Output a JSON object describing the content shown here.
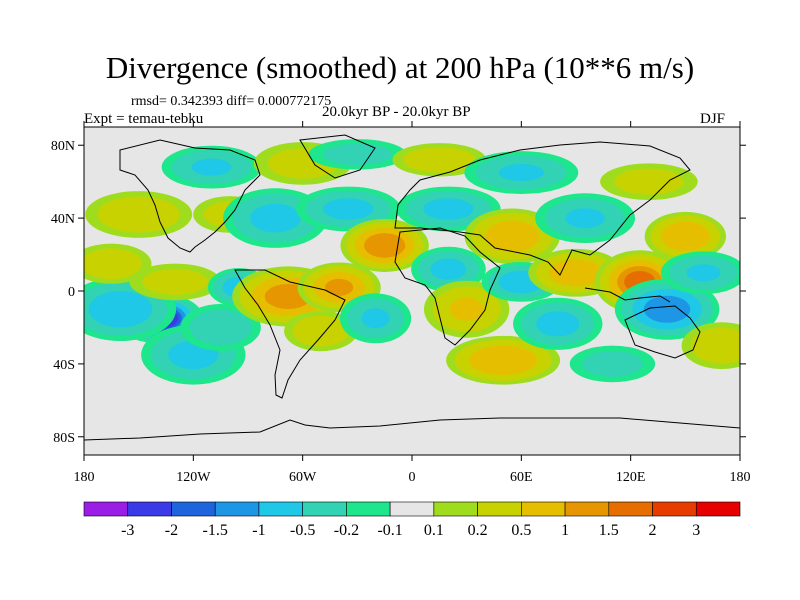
{
  "header": {
    "title": "Divergence (smoothed) at 200 hPa (10**6 m/s)",
    "stats": "rmsd= 0.342393  diff= 0.000772175",
    "experiment": "Expt = temau-tebku",
    "period": "20.0kyr BP - 20.0kyr BP",
    "season": "DJF"
  },
  "chart_data": {
    "type": "heatmap",
    "title": "Divergence (smoothed) at 200 hPa (10**6 m/s)",
    "projection": "cylindrical equidistant",
    "x_axis": {
      "range": [
        -180,
        180
      ],
      "ticks": [
        {
          "value": -180,
          "label": "180"
        },
        {
          "value": -120,
          "label": "120W"
        },
        {
          "value": -60,
          "label": "60W"
        },
        {
          "value": 0,
          "label": "0"
        },
        {
          "value": 60,
          "label": "60E"
        },
        {
          "value": 120,
          "label": "120E"
        },
        {
          "value": 180,
          "label": "180"
        }
      ]
    },
    "y_axis": {
      "range": [
        -90,
        90
      ],
      "ticks": [
        {
          "value": 80,
          "label": "80N"
        },
        {
          "value": 40,
          "label": "40N"
        },
        {
          "value": 0,
          "label": "0"
        },
        {
          "value": -40,
          "label": "40S"
        },
        {
          "value": -80,
          "label": "80S"
        }
      ]
    },
    "colorbar": {
      "colors": [
        "#9b1ee6",
        "#3a3ae6",
        "#1e64dc",
        "#1e96e6",
        "#1ec8e6",
        "#32d2b4",
        "#1ee68c",
        "#e6e6e6",
        "#a0dc1e",
        "#c8d200",
        "#e6be00",
        "#e69600",
        "#e66e00",
        "#e63c00",
        "#e60000"
      ],
      "labels": [
        "-3",
        "-2",
        "-1.5",
        "-1",
        "-0.5",
        "-0.2",
        "-0.1",
        "0.1",
        "0.2",
        "0.5",
        "1",
        "1.5",
        "2",
        "3"
      ]
    },
    "features": [
      {
        "lon": -139,
        "lat": -15,
        "sx": 9,
        "sy": 5,
        "value": -3.0
      },
      {
        "lon": -160,
        "lat": -10,
        "sx": 14,
        "sy": 8,
        "value": -0.8
      },
      {
        "lon": -120,
        "lat": -35,
        "sx": 14,
        "sy": 8,
        "value": -0.6
      },
      {
        "lon": -105,
        "lat": -20,
        "sx": 12,
        "sy": 7,
        "value": -0.4
      },
      {
        "lon": -165,
        "lat": 15,
        "sx": 12,
        "sy": 6,
        "value": 0.4
      },
      {
        "lon": -130,
        "lat": 5,
        "sx": 15,
        "sy": 6,
        "value": 0.3
      },
      {
        "lon": -95,
        "lat": 2,
        "sx": 8,
        "sy": 5,
        "value": -0.7
      },
      {
        "lon": -150,
        "lat": 42,
        "sx": 16,
        "sy": 7,
        "value": 0.4
      },
      {
        "lon": -100,
        "lat": 42,
        "sx": 12,
        "sy": 6,
        "value": 0.3
      },
      {
        "lon": -110,
        "lat": 68,
        "sx": 14,
        "sy": 6,
        "value": -0.5
      },
      {
        "lon": -75,
        "lat": 40,
        "sx": 14,
        "sy": 8,
        "value": -0.6
      },
      {
        "lon": -60,
        "lat": 70,
        "sx": 16,
        "sy": 7,
        "value": 0.3
      },
      {
        "lon": -68,
        "lat": -3,
        "sx": 13,
        "sy": 7,
        "value": 1.2
      },
      {
        "lon": -40,
        "lat": 2,
        "sx": 10,
        "sy": 6,
        "value": 1.0
      },
      {
        "lon": -50,
        "lat": -22,
        "sx": 11,
        "sy": 6,
        "value": 0.4
      },
      {
        "lon": -35,
        "lat": 45,
        "sx": 14,
        "sy": 6,
        "value": -0.6
      },
      {
        "lon": -30,
        "lat": 75,
        "sx": 16,
        "sy": 5,
        "value": -0.3
      },
      {
        "lon": -15,
        "lat": 25,
        "sx": 10,
        "sy": 6,
        "value": 1.4
      },
      {
        "lon": -20,
        "lat": -15,
        "sx": 10,
        "sy": 7,
        "value": -0.5
      },
      {
        "lon": 20,
        "lat": 45,
        "sx": 14,
        "sy": 6,
        "value": -0.6
      },
      {
        "lon": 15,
        "lat": 72,
        "sx": 14,
        "sy": 5,
        "value": 0.4
      },
      {
        "lon": 20,
        "lat": 12,
        "sx": 10,
        "sy": 6,
        "value": -0.6
      },
      {
        "lon": 30,
        "lat": -10,
        "sx": 12,
        "sy": 8,
        "value": 0.5
      },
      {
        "lon": 55,
        "lat": 30,
        "sx": 12,
        "sy": 7,
        "value": 0.8
      },
      {
        "lon": 60,
        "lat": 5,
        "sx": 10,
        "sy": 5,
        "value": -0.8
      },
      {
        "lon": 60,
        "lat": 65,
        "sx": 16,
        "sy": 6,
        "value": -0.5
      },
      {
        "lon": 50,
        "lat": -38,
        "sx": 14,
        "sy": 6,
        "value": 0.9
      },
      {
        "lon": 80,
        "lat": -18,
        "sx": 12,
        "sy": 7,
        "value": -0.6
      },
      {
        "lon": 90,
        "lat": 10,
        "sx": 12,
        "sy": 6,
        "value": 0.8
      },
      {
        "lon": 95,
        "lat": 40,
        "sx": 14,
        "sy": 7,
        "value": -0.5
      },
      {
        "lon": 125,
        "lat": 5,
        "sx": 10,
        "sy": 7,
        "value": 1.6
      },
      {
        "lon": 140,
        "lat": -10,
        "sx": 12,
        "sy": 7,
        "value": -1.3
      },
      {
        "lon": 150,
        "lat": 30,
        "sx": 10,
        "sy": 6,
        "value": 0.9
      },
      {
        "lon": 160,
        "lat": 10,
        "sx": 12,
        "sy": 6,
        "value": -0.5
      },
      {
        "lon": 130,
        "lat": 60,
        "sx": 16,
        "sy": 6,
        "value": 0.3
      },
      {
        "lon": 170,
        "lat": -30,
        "sx": 12,
        "sy": 7,
        "value": 0.4
      },
      {
        "lon": 110,
        "lat": -40,
        "sx": 14,
        "sy": 6,
        "value": -0.3
      }
    ]
  }
}
